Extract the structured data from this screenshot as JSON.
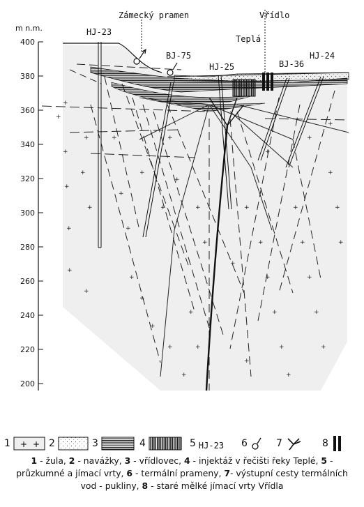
{
  "diagram": {
    "y_axis_unit": "m n.m.",
    "y_axis_ticks": [
      "400",
      "380",
      "360",
      "340",
      "320",
      "300",
      "280",
      "260",
      "240",
      "220",
      "200"
    ],
    "labels": {
      "zamecky_pramen": "Zámecký pramen",
      "vridlo": "Vřídlo",
      "tepla": "Teplá",
      "hj23": "HJ-23",
      "bj75": "BJ-75",
      "hj25": "HJ-25",
      "bj36": "BJ-36",
      "hj24": "HJ-24"
    }
  },
  "legend": [
    {
      "num": "1",
      "symbol": "granite-crosses"
    },
    {
      "num": "2",
      "symbol": "dotted-fill"
    },
    {
      "num": "3",
      "symbol": "horizontal-lines"
    },
    {
      "num": "4",
      "symbol": "dense-vertical-lines"
    },
    {
      "num": "5",
      "symbol": "borehole-label",
      "text": "HJ-23"
    },
    {
      "num": "6",
      "symbol": "spring-icon"
    },
    {
      "num": "7",
      "symbol": "fissure-icon"
    },
    {
      "num": "8",
      "symbol": "old-well-icon"
    }
  ],
  "caption": [
    {
      "num": "1",
      "text": " - žula, "
    },
    {
      "num": "2",
      "text": " - navážky, "
    },
    {
      "num": "3",
      "text": " - vřídlovec, "
    },
    {
      "num": "4",
      "text": " - injektáž v řečišti řeky Teplé, "
    },
    {
      "num": "5",
      "text": " - průzkumné a jímací vrty, "
    },
    {
      "num": "6",
      "text": " - termální prameny, "
    },
    {
      "num": "7",
      "text": "- výstupní cesty termálních vod - pukliny, "
    },
    {
      "num": "8",
      "text": " - staré mělké jímací vrty Vřídla"
    }
  ]
}
